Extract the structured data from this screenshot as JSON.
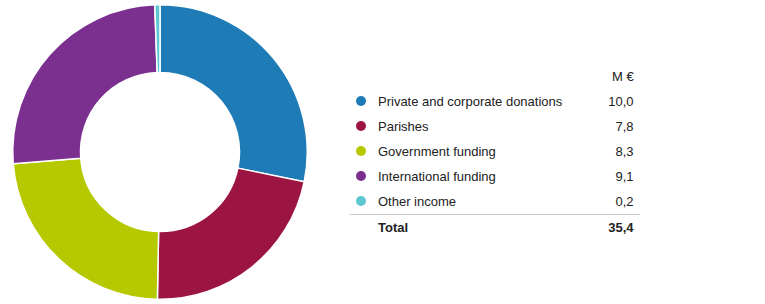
{
  "chart_data": {
    "type": "doughnut",
    "categories": [
      "Private and corporate donations",
      "Parishes",
      "Government funding",
      "International funding",
      "Other income"
    ],
    "values": [
      10.0,
      7.8,
      8.3,
      9.1,
      0.2
    ],
    "value_labels": [
      "10,0",
      "7,8",
      "8,3",
      "9,1",
      "0,2"
    ],
    "colors": [
      "#1f7bb5",
      "#9b1442",
      "#b5c800",
      "#7b3090",
      "#5ec8d2"
    ],
    "unit_label": "M €",
    "total_label": "Total",
    "total_value": 35.4,
    "total_value_label": "35,4",
    "legend": "right"
  }
}
